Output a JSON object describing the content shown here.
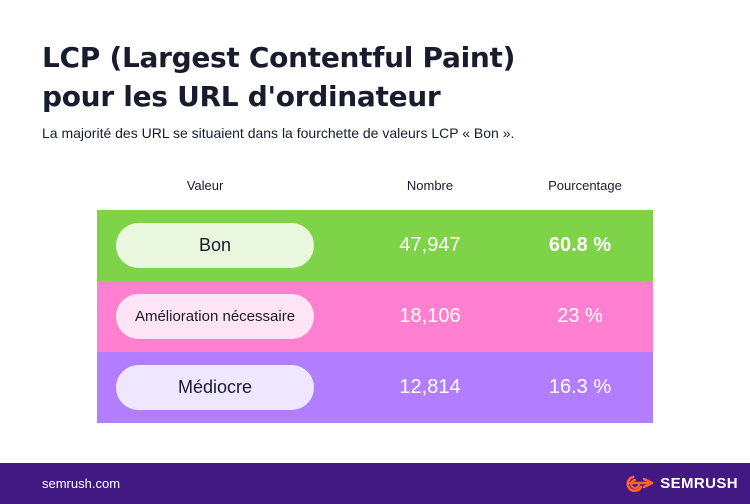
{
  "header": {
    "title_line1": "LCP (Largest Contentful Paint)",
    "title_line2": "pour les URL d'ordinateur",
    "subtitle": "La majorité des URL se situaient dans la fourchette de valeurs LCP « Bon »."
  },
  "chart_data": {
    "type": "table",
    "columns": [
      "Valeur",
      "Nombre",
      "Pourcentage"
    ],
    "rows": [
      {
        "valeur": "Bon",
        "nombre": "47,947",
        "pourcentage": "60.8 %",
        "row_color": "#7ed348",
        "pill_color": "#e9f7df",
        "bold_pct": true
      },
      {
        "valeur": "Amélioration nécessaire",
        "nombre": "18,106",
        "pourcentage": "23 %",
        "row_color": "#ff7fd1",
        "pill_color": "#ffe4f5",
        "bold_pct": false
      },
      {
        "valeur": "Médiocre",
        "nombre": "12,814",
        "pourcentage": "16.3 %",
        "row_color": "#b27eff",
        "pill_color": "#efe6ff",
        "bold_pct": false
      }
    ]
  },
  "footer": {
    "url": "semrush.com",
    "brand": "SEMRUSH",
    "brand_icon": "semrush-logo-icon",
    "background": "#421983",
    "accent": "#ff642d"
  }
}
